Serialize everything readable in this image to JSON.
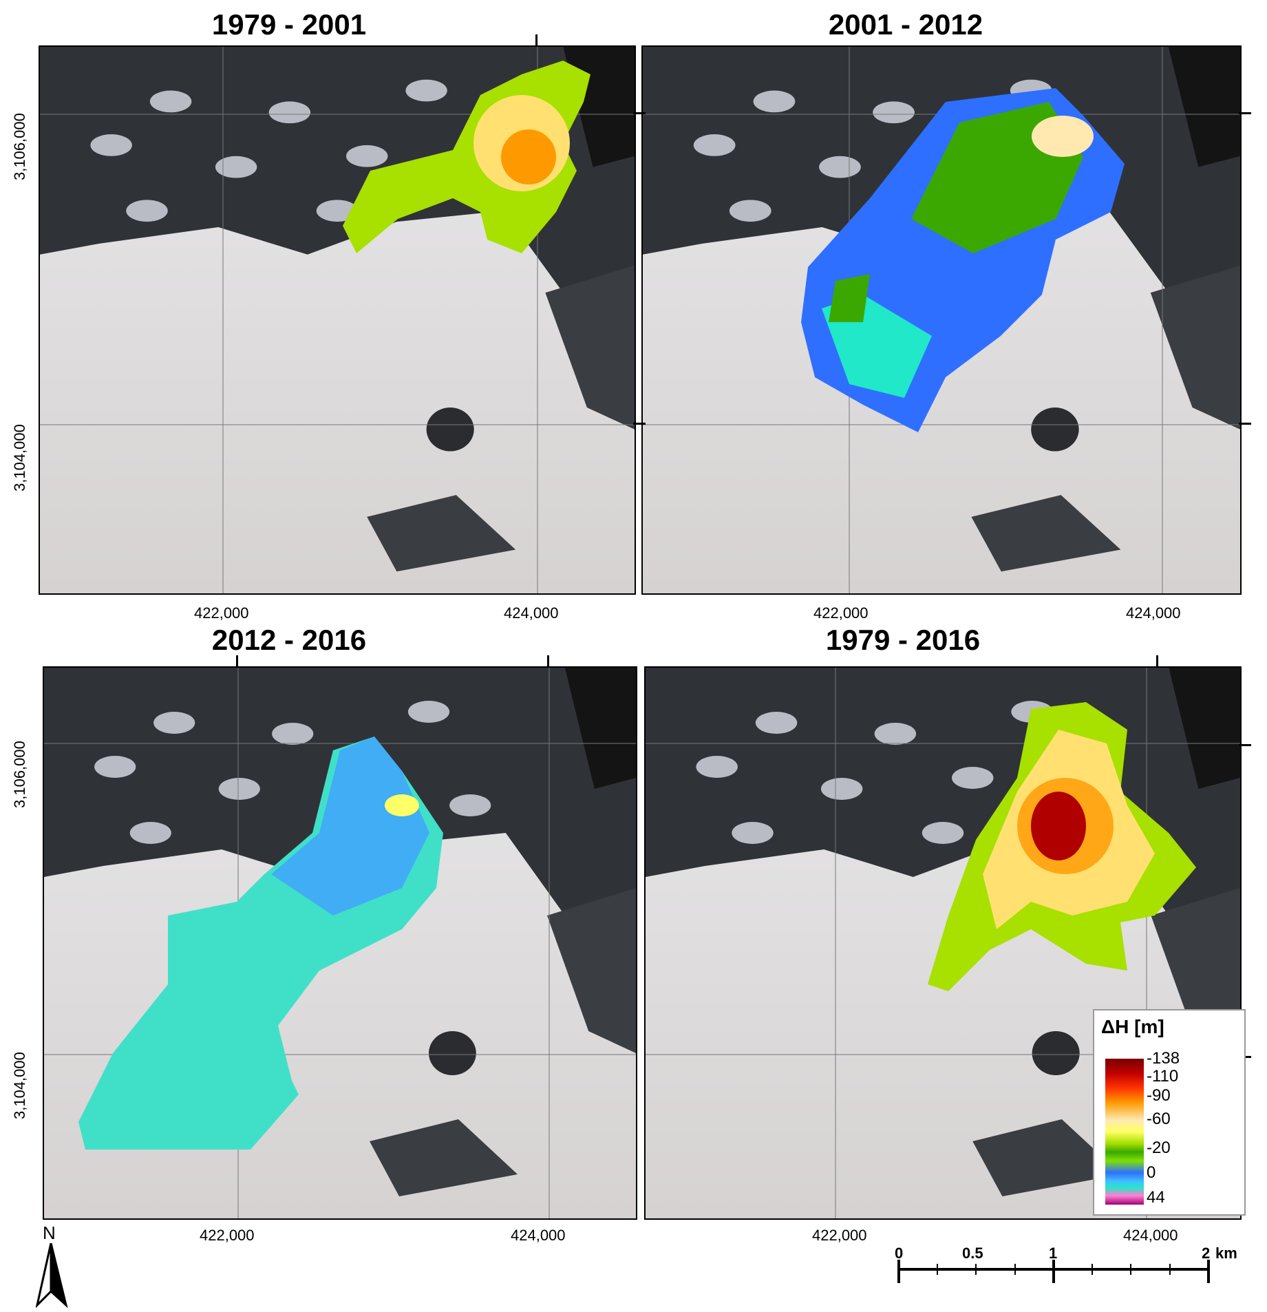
{
  "panels": [
    {
      "title": "1979 - 2001",
      "x_ticks": [
        "422,000",
        "424,000"
      ],
      "y_ticks": [
        "3,106,000",
        "3,104,000"
      ],
      "overlay": "1979-2001"
    },
    {
      "title": "2001 - 2012",
      "x_ticks": [
        "422,000",
        "424,000"
      ],
      "y_ticks": [],
      "overlay": "2001-2012"
    },
    {
      "title": "2012 - 2016",
      "x_ticks": [
        "422,000",
        "424,000"
      ],
      "y_ticks": [
        "3,106,000",
        "3,104,000"
      ],
      "overlay": "2012-2016"
    },
    {
      "title": "1979 - 2016",
      "x_ticks": [
        "422,000",
        "424,000"
      ],
      "y_ticks": [],
      "overlay": "1979-2016"
    }
  ],
  "legend": {
    "title": "ΔH [m]",
    "values": [
      "-138",
      "-110",
      "-90",
      "-60",
      "-20",
      "0",
      "44"
    ],
    "colors": [
      "#7a0000",
      "#c00000",
      "#ff3300",
      "#ff9900",
      "#ffe9b0",
      "#ffff66",
      "#3aa800",
      "#2f6fff",
      "#20e8c8",
      "#a0007a"
    ]
  },
  "north_arrow": {
    "label": "N"
  },
  "scale_bar": {
    "labels": [
      "0",
      "0.5",
      "1",
      "2"
    ],
    "unit": "km"
  }
}
